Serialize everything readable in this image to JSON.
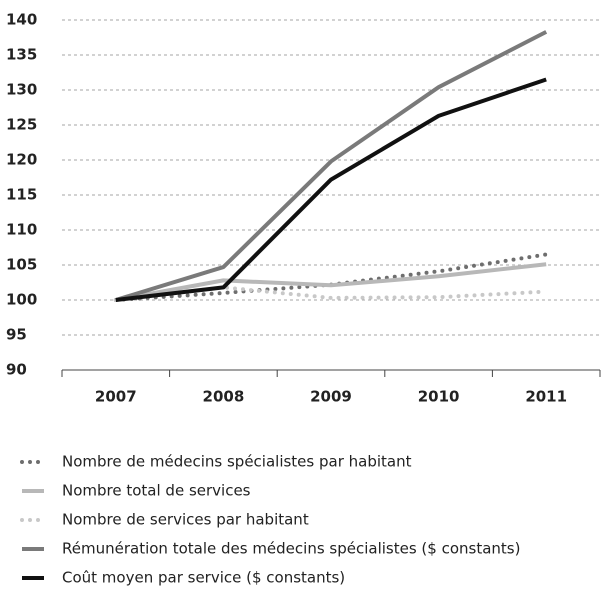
{
  "chart_data": {
    "type": "line",
    "categories": [
      "2007",
      "2008",
      "2009",
      "2010",
      "2011"
    ],
    "series": [
      {
        "name": "Nombre de médecins spécialistes par habitant",
        "color": "#6e6e6e",
        "style": "dotted",
        "values": [
          100,
          101,
          102.2,
          104.1,
          106.5
        ]
      },
      {
        "name": "Nombre total de services",
        "color": "#b8b8b8",
        "style": "solid",
        "values": [
          100,
          102.8,
          102.1,
          103.4,
          105.1
        ]
      },
      {
        "name": "Nombre de services par habitant",
        "color": "#c8c8c8",
        "style": "dotted",
        "values": [
          100,
          101.8,
          100.3,
          100.4,
          101.2
        ]
      },
      {
        "name": "Rémunération totale des médecins spécialistes ($ constants)",
        "color": "#7a7a7a",
        "style": "solid",
        "values": [
          100,
          104.7,
          119.8,
          130.4,
          138.3
        ]
      },
      {
        "name": "Coût moyen par service ($ constants)",
        "color": "#111111",
        "style": "solid",
        "values": [
          100,
          101.8,
          117.2,
          126.3,
          131.5
        ]
      }
    ],
    "ylim": [
      90,
      140
    ],
    "yticks": [
      90,
      95,
      100,
      105,
      110,
      115,
      120,
      125,
      130,
      135,
      140
    ],
    "grid": true
  }
}
